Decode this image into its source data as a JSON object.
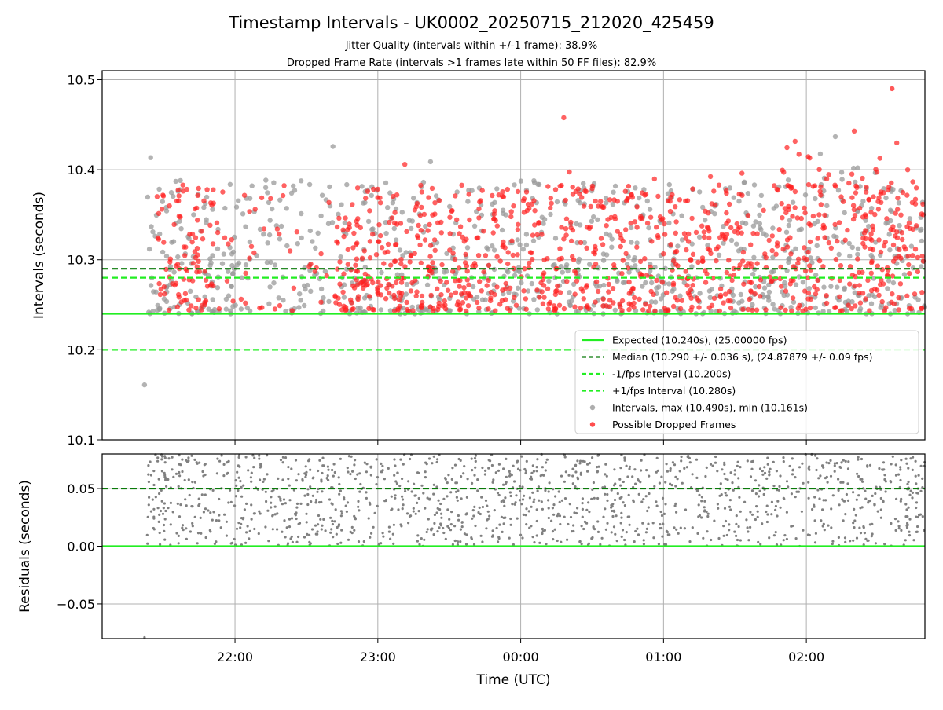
{
  "chart_data": [
    {
      "type": "scatter",
      "title": "Timestamp Intervals - UK0002_20250715_212020_425459",
      "subtitle_lines": [
        "Jitter Quality (intervals within +/-1 frame): 38.9%",
        "Dropped Frame Rate (intervals >1 frames late within 50 FF files): 82.9%"
      ],
      "ylabel": "Intervals (seconds)",
      "xlim_hours": [
        -2.93,
        2.83
      ],
      "ylim": [
        10.1,
        10.51
      ],
      "yticks": [
        10.1,
        10.2,
        10.3,
        10.4,
        10.5
      ],
      "ytick_labels": [
        "10.1",
        "10.2",
        "10.3",
        "10.4",
        "10.5"
      ],
      "grid": true,
      "legend_position": "lower-right",
      "reference_lines": [
        {
          "name": "Expected (10.240s), (25.00000 fps)",
          "y": 10.24,
          "color": "#22ee22",
          "style": "solid"
        },
        {
          "name": "Median (10.290 +/- 0.036 s), (24.87879 +/- 0.09 fps)",
          "y": 10.29,
          "color": "#0a7a0a",
          "style": "dashed"
        },
        {
          "name": "-1/fps Interval (10.200s)",
          "y": 10.2,
          "color": "#22ee22",
          "style": "dashed"
        },
        {
          "name": "+1/fps Interval (10.280s)",
          "y": 10.28,
          "color": "#22ee22",
          "style": "dashed"
        }
      ],
      "series": [
        {
          "name": "Intervals, max (10.490s), min (10.161s)",
          "color": "#999999",
          "count_approx": 2400,
          "x_range_hours": [
            -2.62,
            2.83
          ],
          "y_range": [
            10.161,
            10.49
          ]
        },
        {
          "name": "Possible Dropped Frames",
          "color": "#ff2020",
          "count_approx": 1550,
          "x_range_hours": [
            -2.55,
            2.83
          ],
          "y_range": [
            10.24,
            10.49
          ]
        }
      ],
      "notable_points": [
        {
          "x_time": "21:22",
          "y": 10.161,
          "series": "Intervals, max (10.490s), min (10.161s)"
        },
        {
          "x_time": "02:36",
          "y": 10.49,
          "series": "Possible Dropped Frames"
        }
      ]
    },
    {
      "type": "scatter",
      "xlabel": "Time (UTC)",
      "ylabel": "Residuals (seconds)",
      "xticks": [
        "22:00",
        "23:00",
        "00:00",
        "01:00",
        "02:00"
      ],
      "xtick_hours": [
        -2,
        -1,
        0,
        1,
        2
      ],
      "ylim": [
        -0.08,
        0.08
      ],
      "yticks": [
        -0.05,
        0.0,
        0.05
      ],
      "ytick_labels": [
        "−0.05",
        "0.00",
        "0.05"
      ],
      "grid": true,
      "reference_lines": [
        {
          "y": 0.0,
          "color": "#22ee22",
          "style": "solid"
        },
        {
          "y": 0.05,
          "color": "#0a7a0a",
          "style": "dashed"
        }
      ],
      "series": [
        {
          "color": "#808080",
          "count_approx": 2000,
          "y_range": [
            -0.08,
            0.08
          ]
        }
      ]
    }
  ]
}
